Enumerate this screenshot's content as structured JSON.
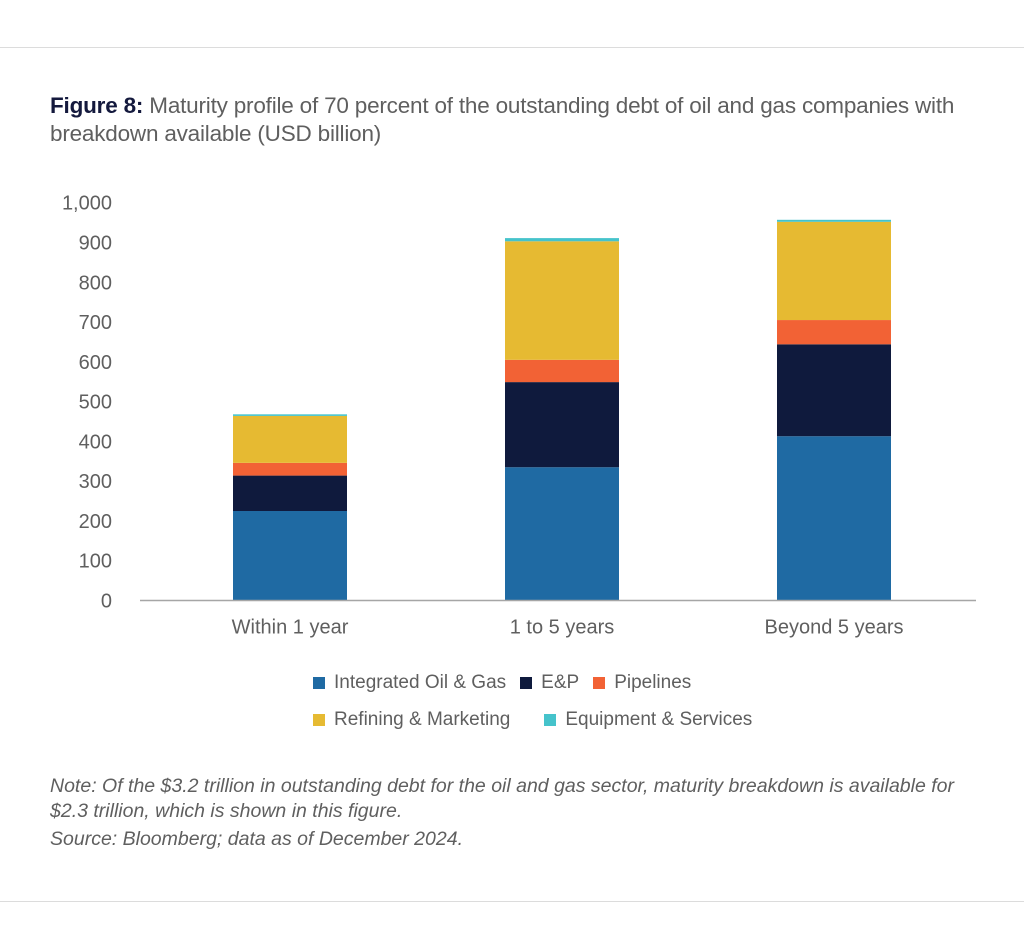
{
  "title": {
    "figure_label": "Figure 8:",
    "text": " Maturity profile of 70 percent of the outstanding debt of oil and gas companies with breakdown available (USD billion)"
  },
  "chart_data": {
    "type": "bar",
    "stacked": true,
    "title": "Figure 8: Maturity profile of 70 percent of the outstanding debt of oil and gas companies with breakdown available (USD billion)",
    "xlabel": "",
    "ylabel": "USD billion",
    "ylim": [
      0,
      1000
    ],
    "yticks": [
      0,
      100,
      200,
      300,
      400,
      500,
      600,
      700,
      800,
      900,
      1000
    ],
    "ytick_labels": [
      "0",
      "100",
      "200",
      "300",
      "400",
      "500",
      "600",
      "700",
      "800",
      "900",
      "1,000"
    ],
    "grid": false,
    "legend_position": "bottom",
    "categories": [
      "Within 1 year",
      "1 to 5 years",
      "Beyond 5 years"
    ],
    "series": [
      {
        "name": "Integrated Oil & Gas",
        "color": "#1f6aa3",
        "values": [
          225,
          335,
          413
        ]
      },
      {
        "name": "E&P",
        "color": "#0f1a3d",
        "values": [
          89,
          214,
          231
        ]
      },
      {
        "name": "Pipelines",
        "color": "#f26235",
        "values": [
          32,
          56,
          61
        ]
      },
      {
        "name": "Refining & Marketing",
        "color": "#e6ba32",
        "values": [
          118,
          298,
          247
        ]
      },
      {
        "name": "Equipment & Services",
        "color": "#45c3cb",
        "values": [
          4,
          8,
          5
        ]
      }
    ]
  },
  "legend": {
    "rows": [
      [
        0,
        1,
        2
      ],
      [
        3,
        4
      ]
    ]
  },
  "notes": {
    "note": "Note: Of the $3.2 trillion in outstanding debt for the oil and gas sector, maturity breakdown is available for $2.3 trillion, which is shown in this figure.",
    "source": "Source: Bloomberg; data as of December 2024."
  }
}
